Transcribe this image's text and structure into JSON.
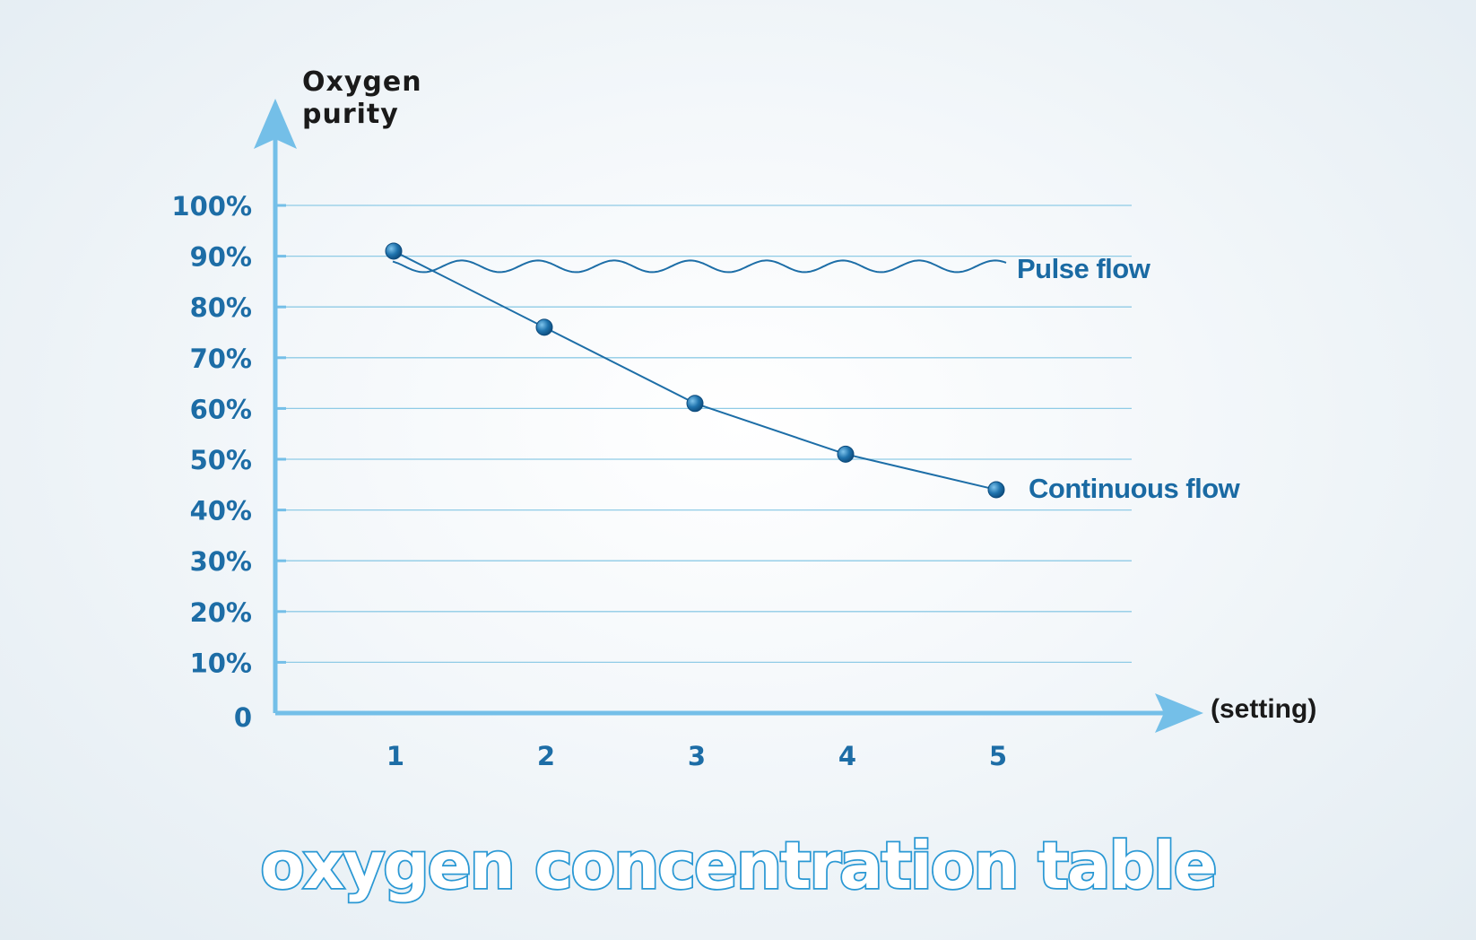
{
  "chart_data": {
    "type": "line",
    "title": "oxygen concentration table",
    "ylabel_lines": [
      "Oxygen",
      "purity"
    ],
    "xlabel": "(setting)",
    "x": [
      1,
      2,
      3,
      4,
      5
    ],
    "x_tick_labels": [
      "1",
      "2",
      "3",
      "4",
      "5"
    ],
    "y_tick_labels": [
      "0",
      "10%",
      "20%",
      "30%",
      "40%",
      "50%",
      "60%",
      "70%",
      "80%",
      "90%",
      "100%"
    ],
    "ylim": [
      0,
      100
    ],
    "grid": true,
    "series": [
      {
        "name": "Pulse flow",
        "values": [
          88,
          88,
          88,
          88,
          88
        ],
        "style": "wavy"
      },
      {
        "name": "Continuous flow",
        "values": [
          91,
          76,
          61,
          51,
          44
        ],
        "style": "line-markers"
      }
    ],
    "colors": {
      "axis": "#74bfe8",
      "grid": "#8fcbe6",
      "series": "#1d6ea7",
      "marker": "#1a6aa5",
      "tick_text": "#1d6da6",
      "title_outline": "#2a98d4"
    }
  }
}
